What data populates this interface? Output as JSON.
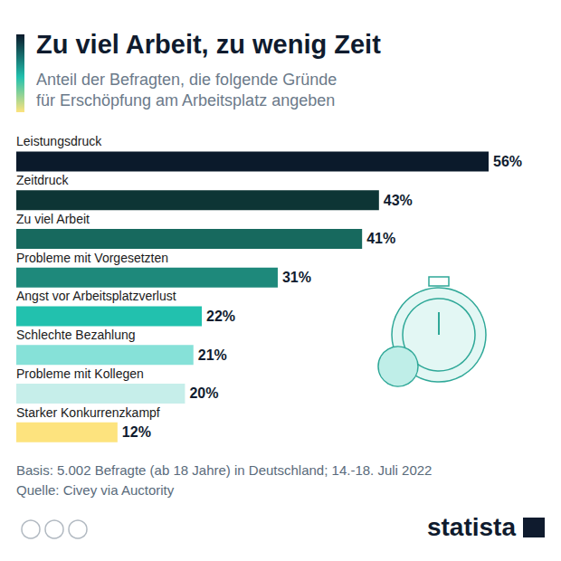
{
  "chart_data": {
    "type": "bar",
    "title": "Zu viel Arbeit, zu wenig Zeit",
    "subtitle": [
      "Anteil der Befragten, die folgende Gründe",
      "für Erschöpfung am Arbeitsplatz angeben"
    ],
    "categories": [
      "Leistungsdruck",
      "Zeitdruck",
      "Zu viel Arbeit",
      "Probleme mit Vorgesetzten",
      "Angst vor Arbeitsplatzverlust",
      "Schlechte Bezahlung",
      "Probleme mit Kollegen",
      "Starker Konkurrenzkampf"
    ],
    "values": [
      56,
      43,
      41,
      31,
      22,
      21,
      20,
      12
    ],
    "value_labels": [
      "56%",
      "43%",
      "41%",
      "31%",
      "22%",
      "21%",
      "20%",
      "12%"
    ],
    "colors": [
      "#0b1a2b",
      "#0d3535",
      "#17695e",
      "#1e897b",
      "#22c1ae",
      "#86e1d8",
      "#c6eeea",
      "#fde37e"
    ],
    "xlim": [
      0,
      56
    ],
    "orientation": "horizontal",
    "data_labels": true,
    "tick_labels": false,
    "grid": false,
    "annotations": [
      "Basis: 5.002 Befragte (ab 18 Jahre) in Deutschland; 14.-18. Juli 2022",
      "Quelle: Civey via Auctority",
      "statista"
    ]
  }
}
